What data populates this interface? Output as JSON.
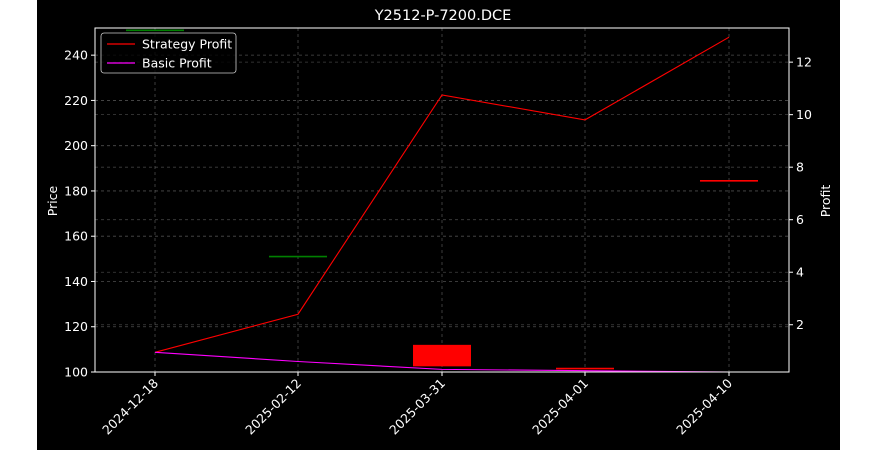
{
  "chart_data": {
    "type": "candlestick",
    "title": "Y2512-P-7200.DCE",
    "categories": [
      "2024-12-18",
      "2025-02-12",
      "2025-03-31",
      "2025-04-01",
      "2025-04-10"
    ],
    "ylabel_left": "Price",
    "ylabel_right": "Profit",
    "ylim_left": [
      100,
      252
    ],
    "ylim_right": [
      0.2,
      13.3
    ],
    "yticks_left": [
      "100",
      "120",
      "140",
      "160",
      "180",
      "200",
      "220",
      "240"
    ],
    "yticks_right": [
      "2",
      "4",
      "6",
      "8",
      "10",
      "12"
    ],
    "grid": true,
    "legend_position": "top-left",
    "candles": [
      {
        "date": "2024-12-18",
        "open": 251,
        "close": 251,
        "color": "#008000"
      },
      {
        "date": "2025-02-12",
        "open": 151,
        "close": 151,
        "color": "#008000"
      },
      {
        "date": "2025-03-31",
        "open": 112,
        "close": 102.5,
        "color": "#ff0000"
      },
      {
        "date": "2025-04-01",
        "open": 101.5,
        "close": 101,
        "color": "#ff0000"
      },
      {
        "date": "2025-04-10",
        "open": 184.5,
        "close": 184.5,
        "color": "#ff0000"
      }
    ],
    "series": [
      {
        "name": "Strategy Profit",
        "color": "#ff0000",
        "values": [
          0.95,
          2.4,
          10.75,
          9.8,
          12.95
        ]
      },
      {
        "name": "Basic Profit",
        "color": "#ff00ff",
        "values": [
          0.95,
          0.6,
          0.3,
          0.25,
          0.2
        ]
      }
    ],
    "colors": {
      "background": "#000000",
      "axes": "#ffffff",
      "grid": "#808080"
    }
  }
}
